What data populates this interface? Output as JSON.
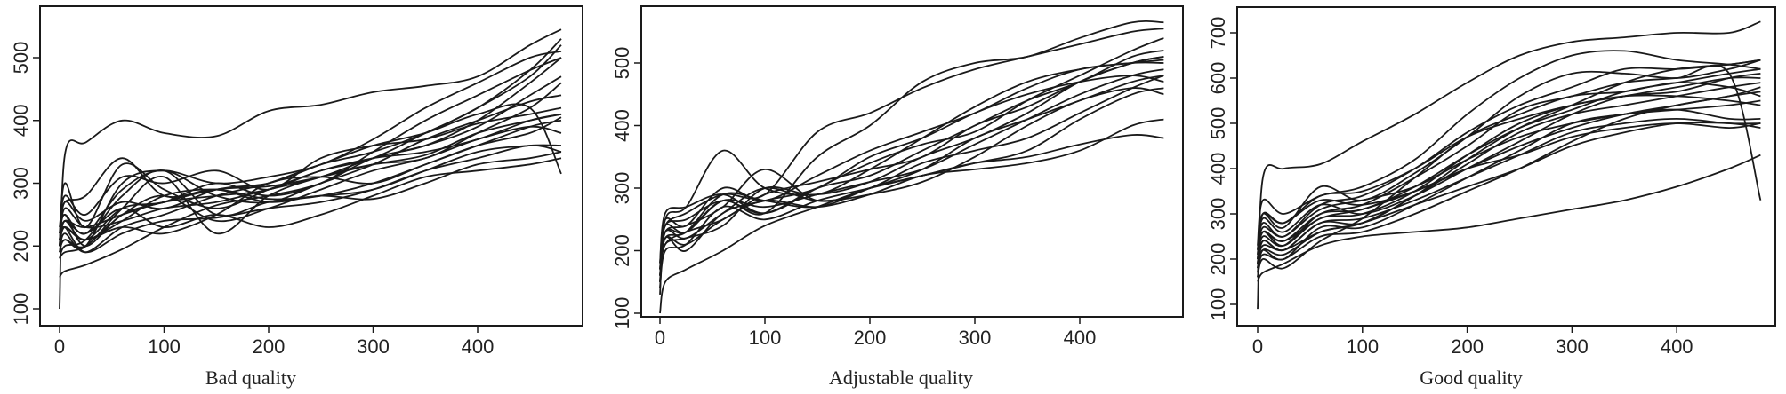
{
  "chart_data": [
    {
      "type": "line",
      "title": "",
      "xlabel": "Bad quality",
      "ylabel": "",
      "xlim": [
        0,
        480
      ],
      "ylim": [
        80,
        570
      ],
      "xticks": [
        0,
        100,
        200,
        300,
        400
      ],
      "yticks": [
        100,
        200,
        300,
        400,
        500
      ],
      "grid": false,
      "x": [
        0,
        5,
        25,
        60,
        100,
        150,
        200,
        250,
        300,
        350,
        400,
        450,
        480
      ],
      "series": [
        [
          100,
          345,
          365,
          400,
          380,
          375,
          415,
          425,
          445,
          455,
          470,
          520,
          545
        ],
        [
          150,
          160,
          170,
          195,
          230,
          265,
          280,
          300,
          340,
          360,
          400,
          460,
          500
        ],
        [
          200,
          300,
          230,
          330,
          290,
          260,
          290,
          320,
          340,
          380,
          420,
          480,
          530
        ],
        [
          210,
          250,
          200,
          250,
          270,
          290,
          295,
          310,
          330,
          345,
          380,
          400,
          410
        ],
        [
          190,
          220,
          190,
          230,
          250,
          280,
          300,
          330,
          350,
          380,
          420,
          470,
          520
        ],
        [
          180,
          200,
          210,
          280,
          320,
          250,
          270,
          280,
          300,
          330,
          360,
          380,
          405
        ],
        [
          220,
          280,
          250,
          310,
          300,
          320,
          290,
          340,
          360,
          370,
          395,
          410,
          420
        ],
        [
          200,
          240,
          220,
          260,
          230,
          250,
          230,
          250,
          280,
          310,
          320,
          330,
          340
        ],
        [
          210,
          230,
          210,
          240,
          280,
          290,
          275,
          280,
          290,
          320,
          350,
          360,
          360
        ],
        [
          190,
          210,
          200,
          300,
          320,
          300,
          310,
          330,
          370,
          420,
          460,
          500,
          510
        ],
        [
          200,
          260,
          230,
          240,
          260,
          270,
          290,
          310,
          340,
          360,
          390,
          440,
          470
        ],
        [
          230,
          270,
          280,
          340,
          280,
          290,
          270,
          280,
          275,
          300,
          330,
          340,
          350
        ],
        [
          200,
          240,
          210,
          260,
          270,
          300,
          280,
          300,
          350,
          400,
          440,
          480,
          500
        ],
        [
          210,
          230,
          190,
          220,
          240,
          245,
          260,
          270,
          290,
          320,
          340,
          360,
          350
        ],
        [
          180,
          190,
          200,
          250,
          280,
          240,
          260,
          290,
          320,
          340,
          370,
          390,
          380
        ],
        [
          220,
          250,
          220,
          290,
          320,
          280,
          270,
          300,
          330,
          370,
          400,
          430,
          440
        ],
        [
          200,
          230,
          210,
          230,
          220,
          250,
          300,
          310,
          300,
          330,
          360,
          390,
          400
        ],
        [
          190,
          210,
          200,
          260,
          310,
          220,
          280,
          310,
          330,
          340,
          380,
          420,
          460
        ],
        [
          200,
          270,
          240,
          270,
          260,
          290,
          300,
          330,
          360,
          380,
          410,
          420,
          315
        ],
        [
          210,
          240,
          230,
          250,
          270,
          280,
          290,
          320,
          340,
          350,
          370,
          400,
          410
        ]
      ]
    },
    {
      "type": "line",
      "title": "",
      "xlabel": "Adjustable quality",
      "ylabel": "",
      "xlim": [
        0,
        480
      ],
      "ylim": [
        90,
        580
      ],
      "xticks": [
        0,
        100,
        200,
        300,
        400
      ],
      "yticks": [
        100,
        200,
        300,
        400,
        500
      ],
      "grid": false,
      "x": [
        0,
        5,
        25,
        60,
        100,
        150,
        200,
        250,
        300,
        350,
        400,
        450,
        480
      ],
      "series": [
        [
          100,
          150,
          170,
          200,
          240,
          270,
          300,
          320,
          340,
          350,
          370,
          385,
          380
        ],
        [
          130,
          250,
          270,
          360,
          300,
          290,
          310,
          350,
          380,
          420,
          470,
          500,
          510
        ],
        [
          150,
          230,
          230,
          280,
          260,
          350,
          400,
          470,
          500,
          510,
          540,
          565,
          565
        ],
        [
          160,
          210,
          230,
          250,
          290,
          310,
          330,
          350,
          400,
          430,
          470,
          500,
          510
        ],
        [
          170,
          240,
          260,
          290,
          290,
          390,
          420,
          460,
          490,
          510,
          530,
          550,
          555
        ],
        [
          140,
          220,
          200,
          260,
          280,
          300,
          350,
          380,
          420,
          450,
          470,
          480,
          470
        ],
        [
          160,
          230,
          240,
          270,
          330,
          280,
          300,
          340,
          360,
          380,
          420,
          460,
          480
        ],
        [
          180,
          260,
          270,
          290,
          260,
          300,
          340,
          370,
          390,
          440,
          480,
          520,
          540
        ],
        [
          150,
          220,
          210,
          250,
          280,
          270,
          290,
          320,
          330,
          340,
          360,
          400,
          410
        ],
        [
          170,
          240,
          230,
          280,
          270,
          290,
          310,
          330,
          370,
          410,
          450,
          480,
          490
        ],
        [
          160,
          210,
          220,
          240,
          300,
          290,
          330,
          380,
          430,
          470,
          490,
          500,
          500
        ],
        [
          140,
          200,
          210,
          270,
          250,
          280,
          300,
          320,
          340,
          360,
          410,
          450,
          460
        ],
        [
          180,
          250,
          240,
          300,
          280,
          320,
          360,
          390,
          420,
          460,
          490,
          500,
          505
        ],
        [
          150,
          230,
          220,
          260,
          300,
          280,
          290,
          310,
          350,
          400,
          440,
          460,
          450
        ],
        [
          170,
          240,
          250,
          280,
          260,
          300,
          320,
          360,
          400,
          440,
          470,
          510,
          520
        ],
        [
          160,
          220,
          230,
          290,
          280,
          270,
          300,
          330,
          380,
          410,
          440,
          470,
          480
        ]
      ]
    },
    {
      "type": "line",
      "title": "",
      "xlabel": "Good  quality",
      "ylabel": "",
      "xlim": [
        0,
        480
      ],
      "ylim": [
        50,
        750
      ],
      "xticks": [
        0,
        100,
        200,
        300,
        400
      ],
      "yticks": [
        100,
        200,
        300,
        400,
        500,
        600,
        700
      ],
      "grid": false,
      "x": [
        0,
        5,
        25,
        60,
        100,
        150,
        200,
        250,
        300,
        350,
        400,
        450,
        480
      ],
      "series": [
        [
          90,
          380,
          400,
          410,
          460,
          520,
          590,
          650,
          680,
          690,
          700,
          700,
          725
        ],
        [
          150,
          170,
          190,
          230,
          250,
          260,
          270,
          290,
          310,
          330,
          360,
          400,
          430
        ],
        [
          200,
          300,
          280,
          330,
          320,
          350,
          400,
          430,
          470,
          490,
          500,
          490,
          500
        ],
        [
          220,
          300,
          270,
          360,
          330,
          390,
          470,
          560,
          610,
          610,
          600,
          620,
          640
        ],
        [
          190,
          260,
          230,
          290,
          300,
          350,
          430,
          500,
          540,
          560,
          580,
          600,
          600
        ],
        [
          170,
          240,
          220,
          280,
          280,
          340,
          410,
          480,
          520,
          540,
          560,
          580,
          590
        ],
        [
          180,
          220,
          200,
          270,
          270,
          320,
          380,
          440,
          500,
          520,
          530,
          510,
          510
        ],
        [
          210,
          280,
          250,
          320,
          340,
          400,
          480,
          540,
          580,
          620,
          620,
          630,
          640
        ],
        [
          160,
          200,
          180,
          240,
          290,
          380,
          470,
          520,
          560,
          570,
          590,
          580,
          560
        ],
        [
          230,
          330,
          300,
          340,
          360,
          420,
          520,
          600,
          650,
          660,
          640,
          630,
          620
        ],
        [
          200,
          260,
          240,
          300,
          310,
          360,
          430,
          490,
          530,
          570,
          590,
          610,
          620
        ],
        [
          180,
          230,
          220,
          260,
          280,
          320,
          360,
          400,
          450,
          480,
          500,
          500,
          490
        ],
        [
          190,
          250,
          230,
          300,
          320,
          380,
          450,
          530,
          560,
          590,
          600,
          610,
          330
        ],
        [
          220,
          300,
          280,
          340,
          350,
          400,
          470,
          510,
          540,
          560,
          560,
          550,
          540
        ],
        [
          170,
          210,
          200,
          250,
          260,
          300,
          350,
          400,
          460,
          510,
          540,
          560,
          580
        ],
        [
          200,
          270,
          250,
          310,
          330,
          360,
          420,
          470,
          500,
          520,
          530,
          540,
          550
        ],
        [
          210,
          290,
          260,
          320,
          300,
          340,
          400,
          460,
          520,
          560,
          570,
          600,
          610
        ],
        [
          180,
          240,
          220,
          280,
          290,
          330,
          380,
          430,
          480,
          500,
          510,
          500,
          500
        ],
        [
          160,
          220,
          210,
          260,
          280,
          340,
          420,
          490,
          540,
          590,
          620,
          630,
          640
        ],
        [
          190,
          260,
          240,
          290,
          310,
          350,
          400,
          450,
          490,
          520,
          540,
          560,
          570
        ]
      ]
    }
  ]
}
